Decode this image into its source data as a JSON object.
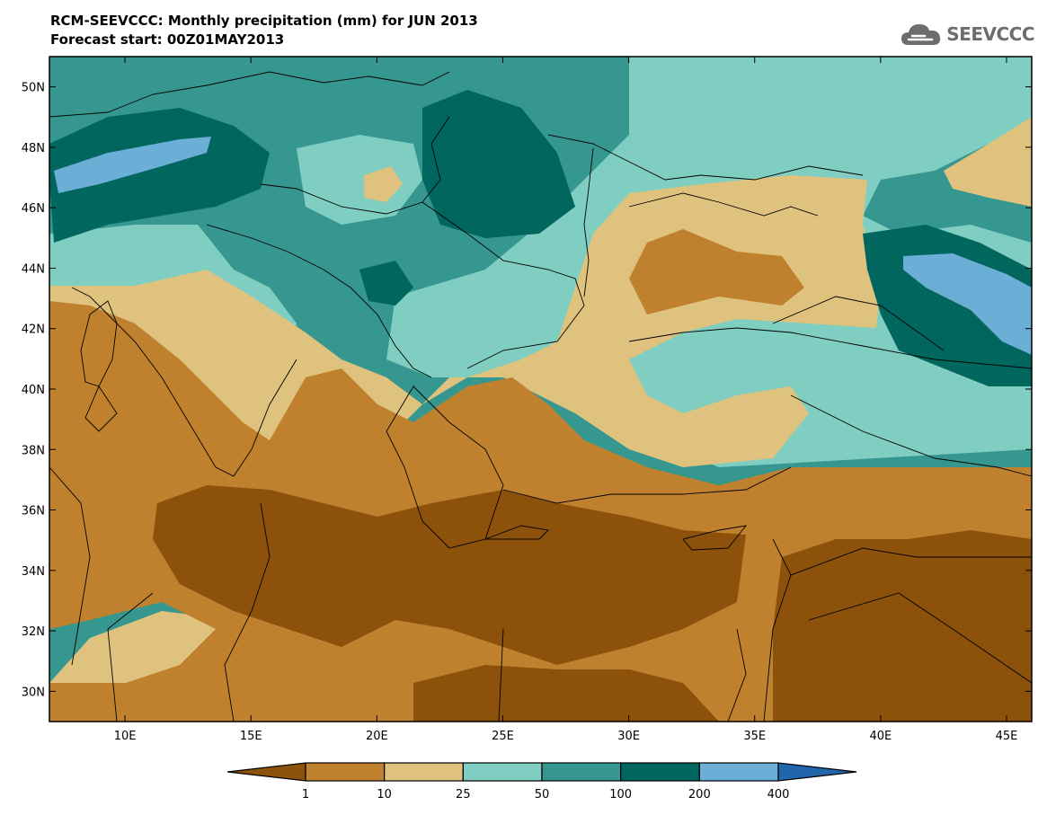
{
  "header": {
    "title": "RCM-SEEVCCC: Monthly precipitation (mm) for JUN 2013",
    "subtitle": "Forecast start: 00Z01MAY2013"
  },
  "logo": {
    "text": "SEEVCCC",
    "icon": "cloud-icon"
  },
  "map": {
    "lon_range": [
      7,
      46
    ],
    "lat_range": [
      29,
      51
    ],
    "lat_ticks": [
      {
        "value": 30,
        "label": "30N"
      },
      {
        "value": 32,
        "label": "32N"
      },
      {
        "value": 34,
        "label": "34N"
      },
      {
        "value": 36,
        "label": "36N"
      },
      {
        "value": 38,
        "label": "38N"
      },
      {
        "value": 40,
        "label": "40N"
      },
      {
        "value": 42,
        "label": "42N"
      },
      {
        "value": 44,
        "label": "44N"
      },
      {
        "value": 46,
        "label": "46N"
      },
      {
        "value": 48,
        "label": "48N"
      },
      {
        "value": 50,
        "label": "50N"
      }
    ],
    "lon_ticks": [
      {
        "value": 10,
        "label": "10E"
      },
      {
        "value": 15,
        "label": "15E"
      },
      {
        "value": 20,
        "label": "20E"
      },
      {
        "value": 25,
        "label": "25E"
      },
      {
        "value": 30,
        "label": "30E"
      },
      {
        "value": 35,
        "label": "35E"
      },
      {
        "value": 40,
        "label": "40E"
      },
      {
        "value": 45,
        "label": "45E"
      }
    ]
  },
  "colorbar": {
    "colors": [
      "#8c510a",
      "#bf812d",
      "#dfc27d",
      "#80cdc1",
      "#35978f",
      "#01665e",
      "#6baed6",
      "#2166ac"
    ],
    "labels": [
      "1",
      "10",
      "25",
      "50",
      "100",
      "200",
      "400"
    ]
  }
}
